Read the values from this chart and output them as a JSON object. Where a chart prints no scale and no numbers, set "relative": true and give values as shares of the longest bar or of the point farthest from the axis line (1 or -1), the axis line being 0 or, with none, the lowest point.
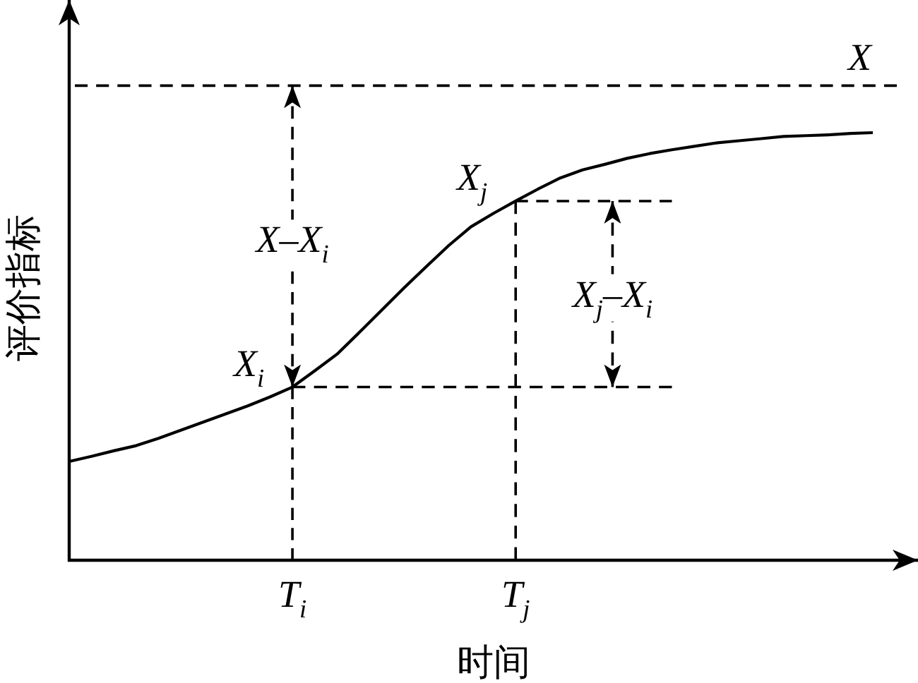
{
  "chart_data": {
    "type": "line",
    "relative": true,
    "xlabel": "时间",
    "ylabel": "评价指标",
    "categories": [
      null,
      null,
      null,
      null,
      null,
      null,
      null,
      null,
      null,
      null,
      "T$_{i}$",
      null,
      null,
      null,
      null,
      null,
      null,
      null,
      null,
      null,
      "T$_{j}$",
      null,
      null,
      null,
      null,
      null,
      null,
      null,
      null,
      null,
      null,
      null,
      null,
      null,
      null,
      null,
      null
    ],
    "series": [
      {
        "color": "#000000",
        "values": [
          0.231,
          0.243,
          0.256,
          0.268,
          0.285,
          0.304,
          0.323,
          0.342,
          0.361,
          0.382,
          0.405,
          0.443,
          0.482,
          0.533,
          0.585,
          0.637,
          0.687,
          0.736,
          0.78,
          0.811,
          0.84,
          0.868,
          0.894,
          0.913,
          0.926,
          0.94,
          0.951,
          0.96,
          0.968,
          0.976,
          0.981,
          0.986,
          0.991,
          0.993,
          0.995,
          0.998,
          1
        ]
      },
      {
        "color": "#000000",
        "line_style": "dashed",
        "values": [
          null,
          null,
          null,
          null,
          null,
          null,
          null,
          null,
          null,
          null,
          0.405,
          0.405,
          0.405,
          0.405,
          0.405,
          0.405,
          0.405,
          0.405,
          0.405,
          0.405,
          0.405,
          0.405,
          0.405,
          0.405,
          0.405,
          0.405,
          0.405,
          0.405,
          null,
          null,
          null,
          null,
          null,
          null,
          null,
          null,
          null
        ]
      },
      {
        "color": "#000000",
        "line_style": "dashed",
        "values": [
          null,
          null,
          null,
          null,
          null,
          null,
          null,
          null,
          null,
          null,
          null,
          null,
          null,
          null,
          null,
          null,
          null,
          null,
          null,
          null,
          0.84,
          0.84,
          0.84,
          0.84,
          0.84,
          0.84,
          0.84,
          0.84,
          null,
          null,
          null,
          null,
          null,
          null,
          null,
          null,
          null
        ]
      }
    ],
    "ref_lines": [
      {
        "axis": "y",
        "value": 1.11,
        "label": "X",
        "line_style": "dashed",
        "color": "#000000"
      },
      {
        "axis": "x",
        "value": "T$_{i}$",
        "line_style": "dashed",
        "color": "#000000"
      },
      {
        "axis": "x",
        "value": "T$_{j}$",
        "line_style": "dashed",
        "color": "#000000"
      }
    ],
    "annotations": [
      {
        "text": "X$_{i}$",
        "x": "T$_{i}$",
        "y": 0.405
      },
      {
        "text": "X$_{j}$",
        "x": "T$_{j}$",
        "y": 0.84
      },
      {
        "text": "X–X$_{i}$",
        "x": "T$_{i}$",
        "y": 0.75
      },
      "X$_{j}$–X$_{i}$"
    ]
  }
}
